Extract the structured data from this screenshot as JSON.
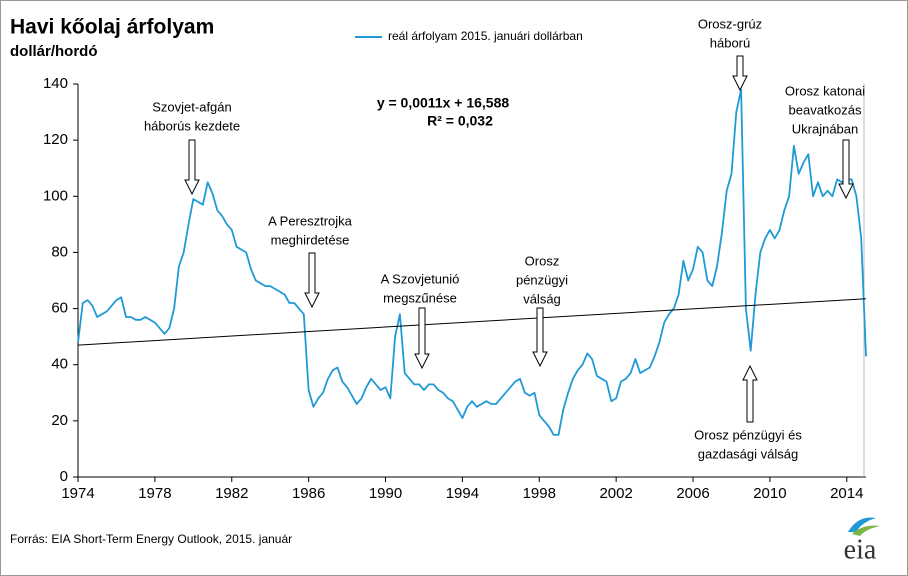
{
  "chart_data": {
    "type": "line",
    "title": "Havi kőolaj árfolyam",
    "subtitle": "dollár/hordó",
    "source": "Forrás:  EIA Short-Term  Energy Outlook, 2015. január",
    "logo": "eia",
    "xlim": [
      1974,
      2015
    ],
    "xticks": [
      1974,
      1978,
      1982,
      1986,
      1990,
      1994,
      1998,
      2002,
      2006,
      2010,
      2014
    ],
    "ylim": [
      0,
      140
    ],
    "yticks": [
      0,
      20,
      40,
      60,
      80,
      100,
      120,
      140
    ],
    "legend": "top",
    "x": [
      1974,
      1974.25,
      1974.5,
      1974.75,
      1975,
      1975.25,
      1975.5,
      1975.75,
      1976,
      1976.25,
      1976.5,
      1976.75,
      1977,
      1977.25,
      1977.5,
      1977.75,
      1978,
      1978.25,
      1978.5,
      1978.75,
      1979,
      1979.25,
      1979.5,
      1979.75,
      1980,
      1980.25,
      1980.5,
      1980.75,
      1981,
      1981.25,
      1981.5,
      1981.75,
      1982,
      1982.25,
      1982.5,
      1982.75,
      1983,
      1983.25,
      1983.5,
      1983.75,
      1984,
      1984.25,
      1984.5,
      1984.75,
      1985,
      1985.25,
      1985.5,
      1985.75,
      1986,
      1986.25,
      1986.5,
      1986.75,
      1987,
      1987.25,
      1987.5,
      1987.75,
      1988,
      1988.25,
      1988.5,
      1988.75,
      1989,
      1989.25,
      1989.5,
      1989.75,
      1990,
      1990.25,
      1990.5,
      1990.75,
      1991,
      1991.25,
      1991.5,
      1991.75,
      1992,
      1992.25,
      1992.5,
      1992.75,
      1993,
      1993.25,
      1993.5,
      1993.75,
      1994,
      1994.25,
      1994.5,
      1994.75,
      1995,
      1995.25,
      1995.5,
      1995.75,
      1996,
      1996.25,
      1996.5,
      1996.75,
      1997,
      1997.25,
      1997.5,
      1997.75,
      1998,
      1998.25,
      1998.5,
      1998.75,
      1999,
      1999.25,
      1999.5,
      1999.75,
      2000,
      2000.25,
      2000.5,
      2000.75,
      2001,
      2001.25,
      2001.5,
      2001.75,
      2002,
      2002.25,
      2002.5,
      2002.75,
      2003,
      2003.25,
      2003.5,
      2003.75,
      2004,
      2004.25,
      2004.5,
      2004.75,
      2005,
      2005.25,
      2005.5,
      2005.75,
      2006,
      2006.25,
      2006.5,
      2006.75,
      2007,
      2007.25,
      2007.5,
      2007.75,
      2008,
      2008.25,
      2008.5,
      2008.75,
      2009,
      2009.25,
      2009.5,
      2009.75,
      2010,
      2010.25,
      2010.5,
      2010.75,
      2011,
      2011.25,
      2011.5,
      2011.75,
      2012,
      2012.25,
      2012.5,
      2012.75,
      2013,
      2013.25,
      2013.5,
      2013.75,
      2014,
      2014.25,
      2014.5,
      2014.75,
      2015
    ],
    "series": [
      {
        "name": "reál árfolyam 2015. januári dollárban",
        "color": "#1f9ad6",
        "values": [
          48,
          62,
          63,
          61,
          57,
          58,
          59,
          61,
          63,
          64,
          57,
          57,
          56,
          56,
          57,
          56,
          55,
          53,
          51,
          53,
          60,
          75,
          80,
          90,
          99,
          98,
          97,
          105,
          101,
          95,
          93,
          90,
          88,
          82,
          81,
          80,
          74,
          70,
          69,
          68,
          68,
          67,
          66,
          65,
          62,
          62,
          60,
          58,
          31,
          25,
          28,
          30,
          35,
          38,
          39,
          34,
          32,
          29,
          26,
          28,
          32,
          35,
          33,
          31,
          32,
          28,
          50,
          58,
          37,
          35,
          33,
          33,
          31,
          33,
          33,
          31,
          30,
          28,
          27,
          24,
          21,
          25,
          27,
          25,
          26,
          27,
          26,
          26,
          28,
          30,
          32,
          34,
          35,
          30,
          29,
          30,
          22,
          20,
          18,
          15,
          15,
          24,
          30,
          35,
          38,
          40,
          44,
          42,
          36,
          35,
          34,
          27,
          28,
          34,
          35,
          37,
          42,
          37,
          38,
          39,
          43,
          48,
          55,
          58,
          60,
          65,
          77,
          70,
          74,
          82,
          80,
          70,
          68,
          75,
          87,
          102,
          108,
          130,
          138,
          60,
          45,
          65,
          80,
          85,
          88,
          85,
          88,
          95,
          100,
          118,
          108,
          112,
          115,
          100,
          105,
          100,
          102,
          100,
          106,
          105,
          106,
          106,
          100,
          85,
          43
        ]
      }
    ],
    "trendline": {
      "x": [
        1974,
        2015
      ],
      "values": [
        47,
        63.5
      ],
      "color": "#000000"
    },
    "equation": [
      "y = 0,0011x + 16,588",
      "R² = 0,032"
    ],
    "annotations": [
      [
        "Szovjet-afgán",
        "háborús kezdete"
      ],
      [
        "A Peresztrojka",
        "meghirdetése"
      ],
      [
        "A Szovjetunió",
        "megszűnése"
      ],
      [
        "Orosz",
        "pénzügyi",
        "válság"
      ],
      [
        "Orosz-grúz",
        "háború"
      ],
      [
        "Orosz katonai",
        "beavatkozás",
        "Ukrajnában"
      ],
      [
        "Orosz pénzügyi és",
        "gazdasági válság"
      ]
    ]
  }
}
